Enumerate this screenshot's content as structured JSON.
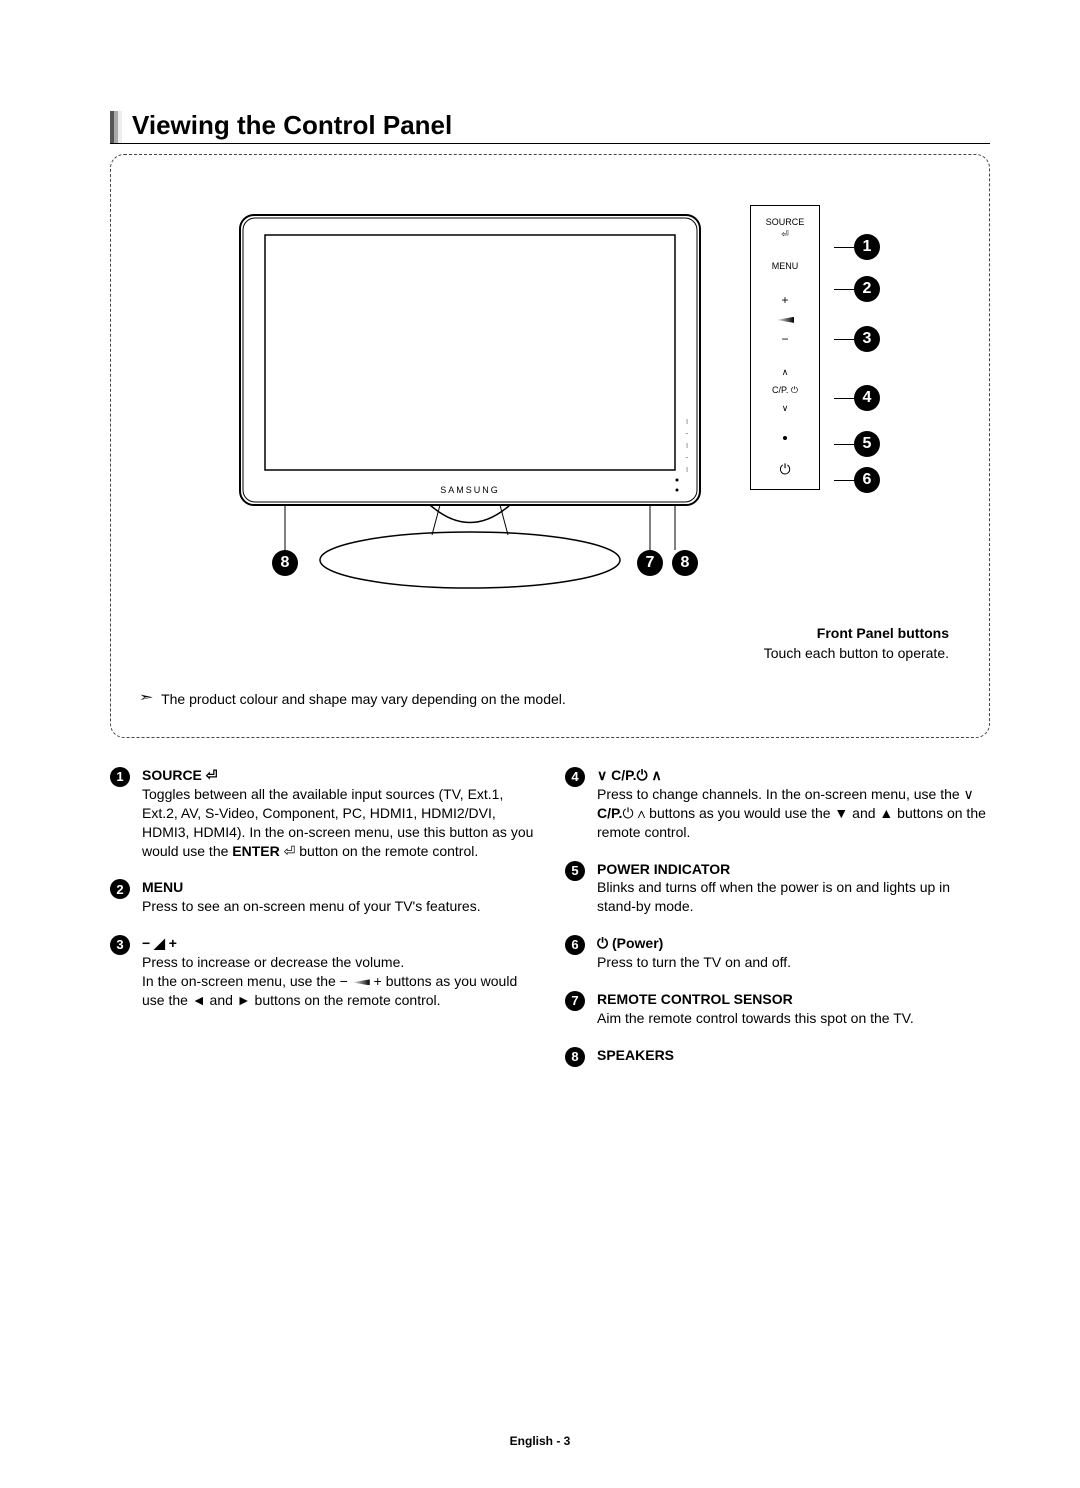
{
  "title": "Viewing the Control Panel",
  "diagram": {
    "brand": "SAMSUNG",
    "tv_callouts_bottom": [
      "8",
      "7",
      "8"
    ],
    "panel_labels": {
      "source": "SOURCE",
      "menu": "MENU",
      "plus": "+",
      "minus": "−",
      "cp": "C/P."
    },
    "side_numbers": [
      "1",
      "2",
      "3",
      "4",
      "5",
      "6"
    ],
    "front_panel_title": "Front Panel buttons",
    "front_panel_desc": "Touch each button to operate.",
    "note": "The product colour and shape may vary depending on the model."
  },
  "items_left": [
    {
      "n": "1",
      "head": "SOURCE ⏎",
      "body": "Toggles between all the available input sources (TV, Ext.1, Ext.2, AV, S-Video, Component, PC, HDMI1, HDMI2/DVI, HDMI3, HDMI4). In the on-screen menu, use this button as you would use the ENTER ⏎ button on the remote control."
    },
    {
      "n": "2",
      "head": "MENU",
      "body": "Press to see an on-screen menu of your TV's features."
    },
    {
      "n": "3",
      "head": "− ◢ +",
      "body": "Press to increase or decrease the volume.\nIn the on-screen menu, use the − ◢ + buttons as you would use the ◄ and ► buttons on the remote control."
    }
  ],
  "items_right": [
    {
      "n": "4",
      "head": "∨  C/P.⏻  ∧",
      "body": "Press to change channels. In the on-screen menu, use the ∨ C/P.⏻ ∧ buttons as you would use the ▼ and ▲ buttons on the remote control."
    },
    {
      "n": "5",
      "head": "POWER INDICATOR",
      "body": "Blinks and turns off when the power is on and lights up in stand-by mode."
    },
    {
      "n": "6",
      "head": "⏻ (Power)",
      "body": "Press to turn the TV on and off."
    },
    {
      "n": "7",
      "head": "REMOTE CONTROL SENSOR",
      "body": "Aim the remote control towards this spot on the TV."
    },
    {
      "n": "8",
      "head": "SPEAKERS",
      "body": ""
    }
  ],
  "footer": "English - 3",
  "colors": {
    "text": "#000000",
    "bg": "#ffffff",
    "dash": "#444444"
  }
}
